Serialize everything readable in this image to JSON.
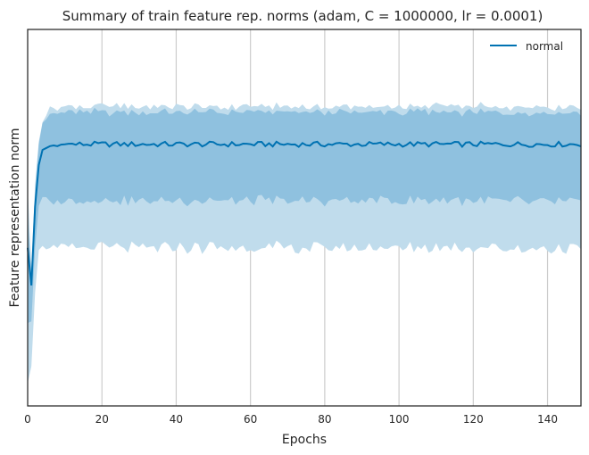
{
  "chart_data": {
    "type": "line",
    "title": "Summary of train feature rep. norms (adam, C = 1000000, lr = 0.0001)",
    "xlabel": "Epochs",
    "ylabel": "Feature representation norm",
    "xlim": [
      0,
      149
    ],
    "ylim": [
      0,
      1
    ],
    "xticks": [
      0,
      20,
      40,
      60,
      80,
      100,
      120,
      140
    ],
    "yticks_shown": false,
    "grid": "vertical",
    "legend": {
      "position": "top-right",
      "entries": [
        "normal"
      ]
    },
    "series": [
      {
        "name": "normal",
        "color": "#0072b2",
        "band_inner_color": "#8fc1df",
        "band_outer_color": "#c0dcec",
        "description": "mean line with inner (std) and outer (min/max) shaded bands",
        "x_start": [
          0,
          1,
          2,
          3,
          4,
          5,
          6,
          7,
          8,
          9,
          10
        ],
        "mean_start": [
          0.42,
          0.32,
          0.53,
          0.64,
          0.68,
          0.685,
          0.69,
          0.692,
          0.69,
          0.694,
          0.695
        ],
        "mean_plateau": 0.695,
        "inner_upper_plateau": 0.78,
        "inner_lower_plateau": 0.545,
        "outer_upper_plateau": 0.795,
        "outer_lower_plateau": 0.42,
        "x_end": 149
      }
    ]
  },
  "colors": {
    "axis": "#262626",
    "grid": "#cccccc",
    "line": "#0072b2",
    "inner_band": "#8fc1df",
    "outer_band": "#c0dcec"
  }
}
